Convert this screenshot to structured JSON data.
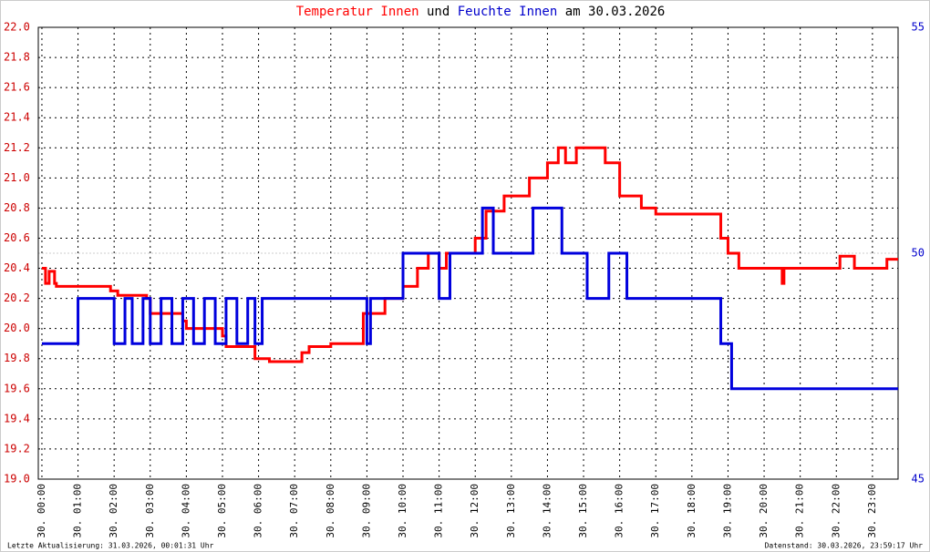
{
  "chart_data": {
    "type": "line",
    "title_parts": [
      {
        "text": "Temperatur Innen",
        "color": "#ff0000"
      },
      {
        "text": "und",
        "color": "#000000"
      },
      {
        "text": "Feuchte Innen",
        "color": "#0000cc"
      },
      {
        "text": "am 30.03.2026",
        "color": "#000000"
      }
    ],
    "footer_left": "Letzte Aktualisierung: 31.03.2026, 00:01:31 Uhr",
    "footer_right": "Datenstand: 30.03.2026, 23:59:17 Uhr",
    "step": true,
    "grid": true,
    "xlim": [
      -0.1,
      23.71
    ],
    "xticks": [
      {
        "value": 0,
        "label": "30. 00:00"
      },
      {
        "value": 1,
        "label": "30. 01:00"
      },
      {
        "value": 2,
        "label": "30. 02:00"
      },
      {
        "value": 3,
        "label": "30. 03:00"
      },
      {
        "value": 4,
        "label": "30. 04:00"
      },
      {
        "value": 5,
        "label": "30. 05:00"
      },
      {
        "value": 6,
        "label": "30. 06:00"
      },
      {
        "value": 7,
        "label": "30. 07:00"
      },
      {
        "value": 8,
        "label": "30. 08:00"
      },
      {
        "value": 9,
        "label": "30. 09:00"
      },
      {
        "value": 10,
        "label": "30. 10:00"
      },
      {
        "value": 11,
        "label": "30. 11:00"
      },
      {
        "value": 12,
        "label": "30. 12:00"
      },
      {
        "value": 13,
        "label": "30. 13:00"
      },
      {
        "value": 14,
        "label": "30. 14:00"
      },
      {
        "value": 15,
        "label": "30. 15:00"
      },
      {
        "value": 16,
        "label": "30. 16:00"
      },
      {
        "value": 17,
        "label": "30. 17:00"
      },
      {
        "value": 18,
        "label": "30. 18:00"
      },
      {
        "value": 19,
        "label": "30. 19:00"
      },
      {
        "value": 20,
        "label": "30. 20:00"
      },
      {
        "value": 21,
        "label": "30. 21:00"
      },
      {
        "value": 22,
        "label": "30. 22:00"
      },
      {
        "value": 23,
        "label": "30. 23:00"
      }
    ],
    "ylim": [
      19.0,
      22.0
    ],
    "yticks": [
      {
        "value": 19.0,
        "label": "19.0"
      },
      19.2,
      19.4,
      19.6,
      19.8,
      {
        "value": 20.0,
        "label": "20.0"
      },
      20.2,
      20.4,
      20.6,
      20.8,
      {
        "value": 21.0,
        "label": "21.0"
      },
      21.2,
      21.4,
      21.6,
      21.8,
      {
        "value": 22.0,
        "label": "22.0"
      }
    ],
    "y2lim": [
      45,
      55
    ],
    "y2ticks": [
      45,
      50,
      55
    ],
    "series": [
      {
        "name": "Temperatur Innen",
        "color": "#ff0000",
        "x": [
          0,
          0.1,
          0.2,
          0.35,
          0.4,
          1.9,
          2.1,
          2.9,
          3.0,
          3.9,
          4.0,
          5.0,
          5.1,
          5.9,
          6.3,
          7.2,
          7.4,
          8.0,
          8.9,
          9.5,
          10.0,
          10.4,
          10.7,
          11.0,
          11.2,
          12.0,
          12.3,
          12.8,
          13.5,
          14.0,
          14.3,
          14.5,
          14.8,
          15.6,
          16.0,
          16.6,
          17.0,
          18.8,
          19.0,
          19.3,
          20.5,
          20.55,
          22.1,
          22.5,
          23.4
        ],
        "values": [
          20.4,
          20.3,
          20.38,
          20.3,
          20.28,
          20.25,
          20.22,
          20.2,
          20.1,
          20.05,
          20.0,
          19.95,
          19.88,
          19.8,
          19.78,
          19.84,
          19.88,
          19.9,
          20.1,
          20.2,
          20.28,
          20.4,
          20.5,
          20.4,
          20.5,
          20.6,
          20.78,
          20.88,
          21.0,
          21.1,
          21.2,
          21.1,
          21.2,
          21.1,
          20.88,
          20.8,
          20.76,
          20.6,
          20.5,
          20.4,
          20.3,
          20.4,
          20.48,
          20.4,
          20.46
        ]
      },
      {
        "name": "Feuchte Innen",
        "color": "#0000dd",
        "axis": "y2",
        "x": [
          0,
          1.0,
          2.0,
          2.3,
          2.5,
          2.8,
          3.0,
          3.3,
          3.6,
          3.9,
          4.2,
          4.5,
          4.8,
          5.1,
          5.4,
          5.7,
          5.9,
          6.1,
          9.0,
          9.1,
          10.0,
          11.0,
          11.3,
          12.2,
          12.5,
          13.6,
          14.4,
          15.1,
          15.7,
          16.2,
          18.8,
          19.1
        ],
        "values": [
          48,
          49,
          48,
          49,
          48,
          49,
          48,
          49,
          48,
          49,
          48,
          49,
          48,
          49,
          48,
          49,
          48,
          49,
          48,
          49,
          50,
          49,
          50,
          51,
          50,
          51,
          50,
          49,
          50,
          49,
          48,
          47
        ]
      }
    ]
  }
}
